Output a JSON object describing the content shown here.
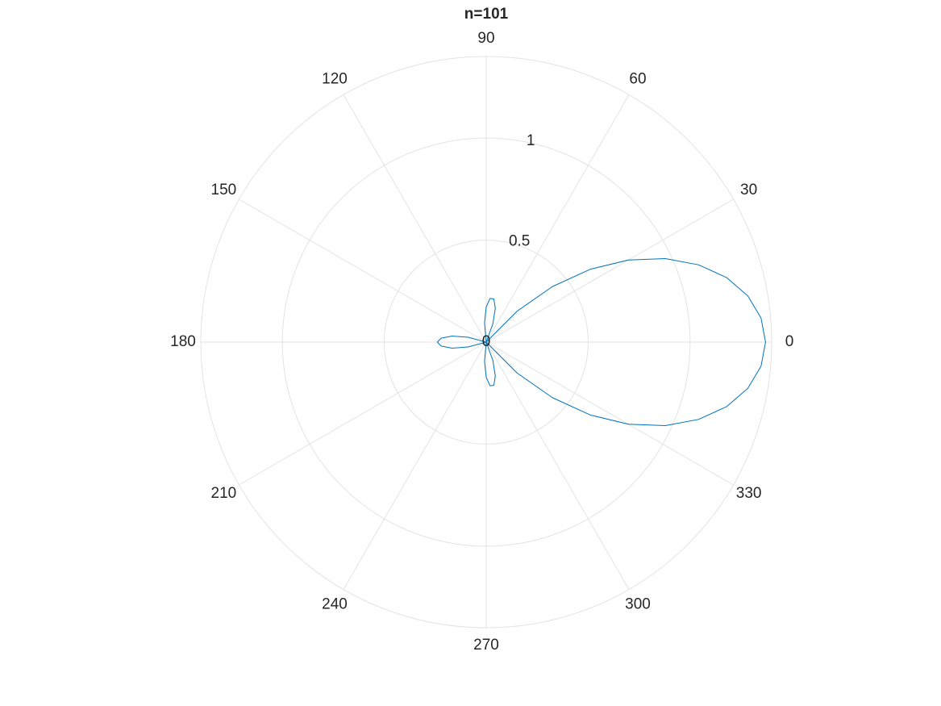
{
  "chart_data": {
    "type": "polar",
    "title": "n=101",
    "theta": [
      0,
      5,
      10,
      15,
      20,
      25,
      30,
      35,
      40,
      45,
      50,
      55,
      60,
      65,
      70,
      75,
      80,
      85,
      90,
      95,
      100,
      105,
      110,
      115,
      120,
      125,
      130,
      135,
      140,
      145,
      150,
      155,
      160,
      165,
      170,
      175,
      180,
      185,
      190,
      195,
      200,
      205,
      210,
      215,
      220,
      225,
      230,
      235,
      240,
      245,
      250,
      255,
      260,
      265,
      270,
      275,
      280,
      285,
      290,
      295,
      300,
      305,
      310,
      315,
      320,
      325,
      330,
      335,
      340,
      345,
      350,
      355
    ],
    "values": [
      1.37,
      1.353,
      1.303,
      1.221,
      1.108,
      0.969,
      0.805,
      0.622,
      0.423,
      0.214,
      0,
      0,
      0,
      0,
      0.095,
      0.172,
      0.215,
      0.215,
      0.172,
      0.095,
      0,
      0,
      0,
      0,
      0,
      0,
      0,
      0,
      0,
      0,
      0,
      0,
      0,
      0.092,
      0.17,
      0.222,
      0.24,
      0.222,
      0.17,
      0.092,
      0,
      0,
      0,
      0,
      0,
      0,
      0,
      0,
      0,
      0,
      0,
      0,
      0,
      0.095,
      0.172,
      0.215,
      0.215,
      0.172,
      0.095,
      0,
      0,
      0,
      0,
      0.214,
      0.423,
      0.622,
      0.805,
      0.969,
      1.108,
      1.221,
      1.303,
      1.353
    ],
    "color": "#0072bd",
    "rlim": [
      0,
      1.4
    ],
    "rticks": [
      0,
      0.5,
      1
    ],
    "thetaticks": [
      0,
      30,
      60,
      90,
      120,
      150,
      180,
      210,
      240,
      270,
      300,
      330
    ],
    "grid": true
  }
}
